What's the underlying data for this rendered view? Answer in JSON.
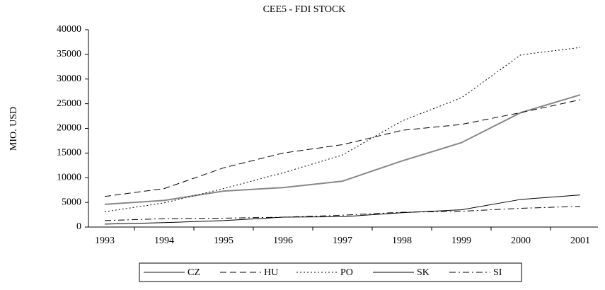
{
  "chart_data": {
    "type": "line",
    "title": "CEE5 - FDI STOCK",
    "y_label": "MIO. USD",
    "categories": [
      "1993",
      "1994",
      "1995",
      "1996",
      "1997",
      "1998",
      "1999",
      "2000",
      "2001"
    ],
    "series": [
      {
        "name": "CZ",
        "color": "#888888",
        "style": "solid",
        "width": 2,
        "values": [
          4600,
          5400,
          7300,
          8000,
          9300,
          13400,
          17100,
          23200,
          26800
        ]
      },
      {
        "name": "HU",
        "color": "#000000",
        "style": "dashed",
        "width": 1,
        "values": [
          6200,
          7800,
          12000,
          15000,
          16700,
          19600,
          20800,
          23200,
          25800
        ]
      },
      {
        "name": "PO",
        "color": "#000000",
        "style": "dotted",
        "width": 1,
        "values": [
          3100,
          4900,
          7800,
          11000,
          14600,
          21500,
          26200,
          34900,
          36400
        ]
      },
      {
        "name": "SK",
        "color": "#000000",
        "style": "solid",
        "width": 1,
        "values": [
          600,
          900,
          1300,
          2000,
          2100,
          2900,
          3500,
          5600,
          6500
        ]
      },
      {
        "name": "SI",
        "color": "#000000",
        "style": "dashdot",
        "width": 1,
        "values": [
          1300,
          1700,
          1800,
          2000,
          2400,
          3000,
          3200,
          3800,
          4200
        ]
      }
    ],
    "ylim": [
      0,
      40000
    ],
    "yticks": [
      0,
      5000,
      10000,
      15000,
      20000,
      25000,
      30000,
      35000,
      40000
    ],
    "legend": "bottom"
  }
}
